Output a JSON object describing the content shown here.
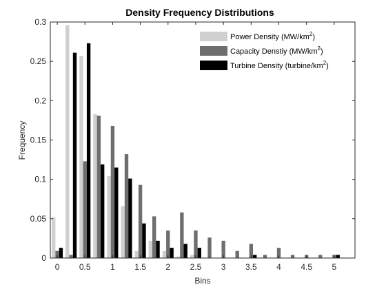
{
  "chart_data": {
    "type": "bar",
    "title": "Density Frequency Distributions",
    "xlabel": "Bins",
    "ylabel": "Frequency",
    "xlim": [
      -0.125,
      5.375
    ],
    "ylim": [
      0,
      0.3
    ],
    "bin_width": 0.25,
    "xticks": [
      0,
      0.5,
      1,
      1.5,
      2,
      2.5,
      3,
      3.5,
      4,
      4.5,
      5
    ],
    "xtick_labels": [
      "0",
      "0.5",
      "1",
      "1.5",
      "2",
      "2.5",
      "3",
      "3.5",
      "4",
      "4.5",
      "5"
    ],
    "yticks": [
      0,
      0.05,
      0.1,
      0.15,
      0.2,
      0.25,
      0.3
    ],
    "ytick_labels": [
      "0",
      "0.05",
      "0.1",
      "0.15",
      "0.2",
      "0.25",
      "0.3"
    ],
    "grid": false,
    "legend_position": "top-right",
    "x": [
      0,
      0.25,
      0.5,
      0.75,
      1,
      1.25,
      1.5,
      1.75,
      2,
      2.25,
      2.5,
      2.75,
      3,
      3.25,
      3.5,
      3.75,
      4,
      4.25,
      4.5,
      4.75,
      5
    ],
    "series": [
      {
        "name": "Power Density (MW/km",
        "name_sup": "2",
        "name_suffix": ")",
        "color": "#d0d0d0",
        "values": [
          0.052,
          0.296,
          0.257,
          0.183,
          0.104,
          0.066,
          0.009,
          0.022,
          0.009,
          0.002,
          0.004,
          0,
          0,
          0,
          0,
          0,
          0,
          0,
          0,
          0,
          0
        ]
      },
      {
        "name": "Capacity Denstiy (MW/km",
        "name_sup": "2",
        "name_suffix": ")",
        "color": "#6e6e6e",
        "values": [
          0.009,
          0.004,
          0.123,
          0.181,
          0.168,
          0.132,
          0.093,
          0.053,
          0.035,
          0.058,
          0.035,
          0.026,
          0.022,
          0.009,
          0.018,
          0.004,
          0.013,
          0.004,
          0.004,
          0.004,
          0.004
        ]
      },
      {
        "name": "Turbine Density (turbine/km",
        "name_sup": "2",
        "name_suffix": ")",
        "color": "#000000",
        "values": [
          0.013,
          0.261,
          0.273,
          0.119,
          0.115,
          0.101,
          0.044,
          0.022,
          0.013,
          0.018,
          0.013,
          0,
          0,
          0,
          0.004,
          0,
          0,
          0,
          0,
          0,
          0.004
        ]
      }
    ]
  }
}
